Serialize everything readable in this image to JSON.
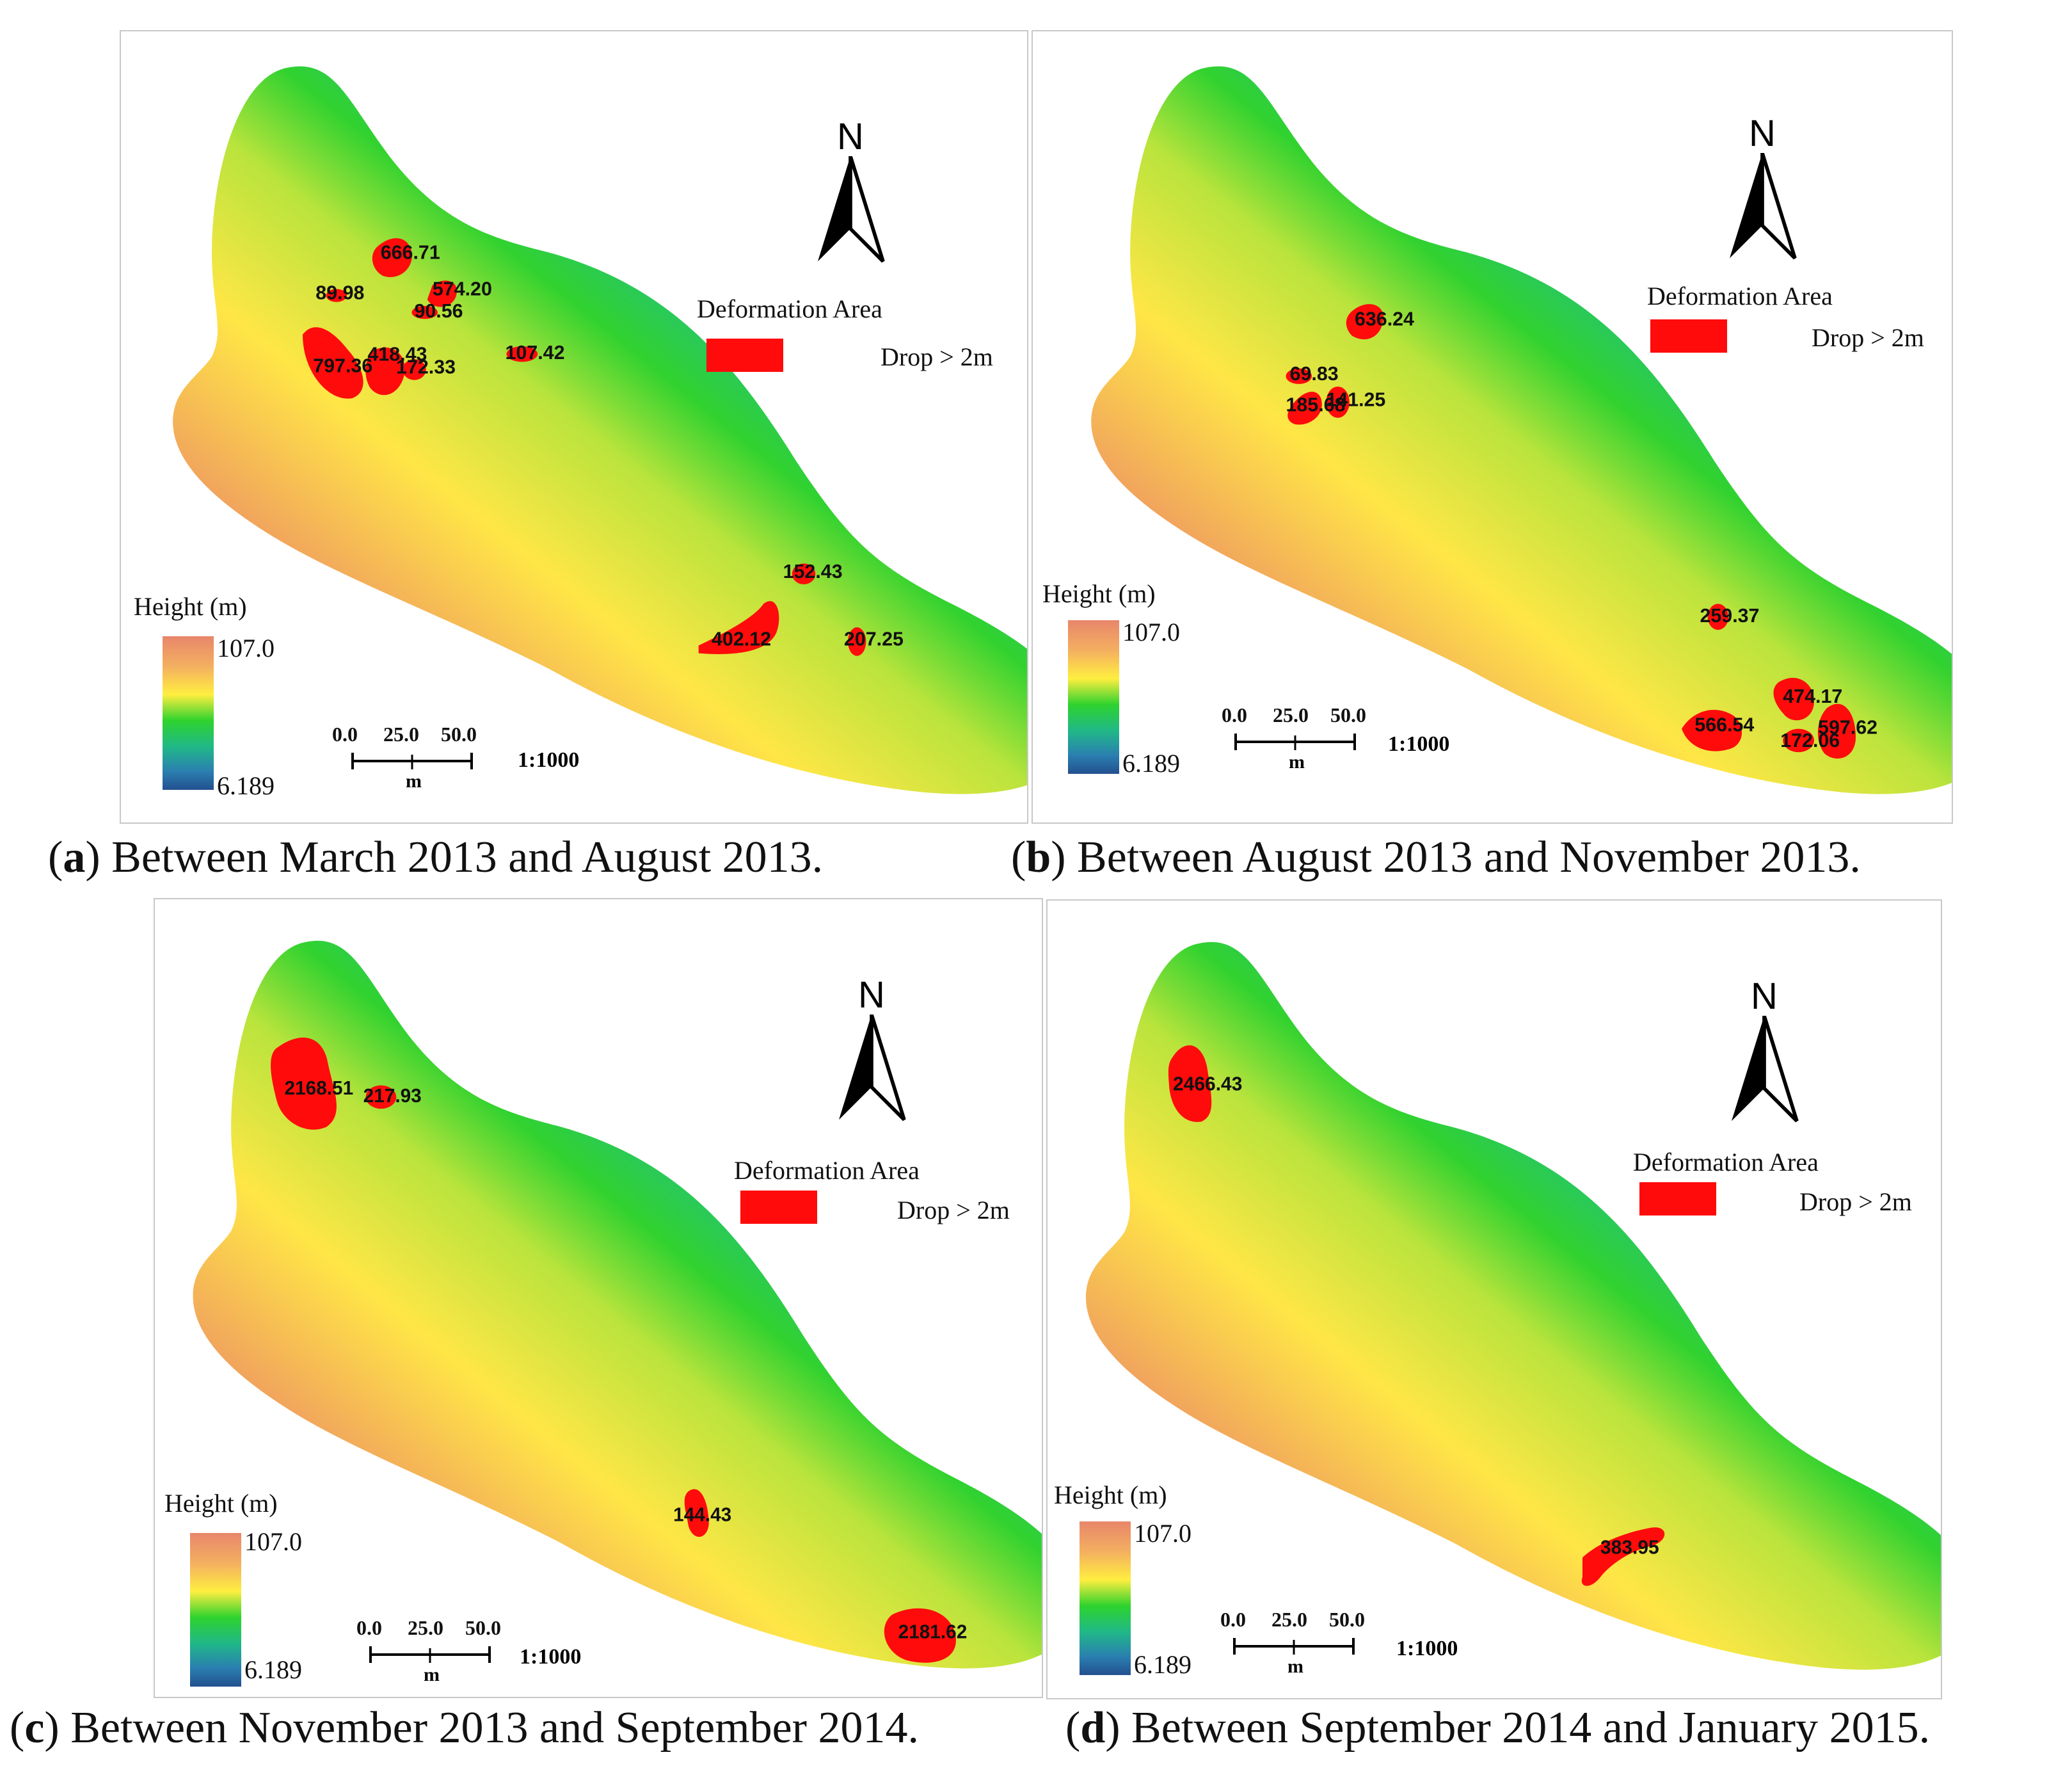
{
  "figure": {
    "panels": [
      {
        "caption": {
          "letter": "a",
          "text": ") Between March 2013 and August 2013."
        },
        "legend": {
          "title": "Height (m)",
          "max": "107.0",
          "min": "6.189"
        },
        "deformation": {
          "title": "Deformation Area",
          "desc": "Drop > 2m"
        },
        "scale": {
          "ticks": [
            "0.0",
            "25.0",
            "50.0"
          ],
          "unit": "m",
          "ratio": "1:1000"
        },
        "north": "N",
        "zones": [
          "666.71",
          "89.98",
          "574.20",
          "90.56",
          "797.36",
          "418.43",
          "172.33",
          "107.42",
          "152.43",
          "402.12",
          "207.25"
        ]
      },
      {
        "caption": {
          "letter": "b",
          "text": ") Between August 2013 and November 2013."
        },
        "legend": {
          "title": "Height (m)",
          "max": "107.0",
          "min": "6.189"
        },
        "deformation": {
          "title": "Deformation Area",
          "desc": "Drop > 2m"
        },
        "scale": {
          "ticks": [
            "0.0",
            "25.0",
            "50.0"
          ],
          "unit": "m",
          "ratio": "1:1000"
        },
        "north": "N",
        "zones": [
          "636.24",
          "69.83",
          "185.68",
          "141.25",
          "259.37",
          "566.54",
          "474.17",
          "172.06",
          "597.62"
        ]
      },
      {
        "caption": {
          "letter": "c",
          "text": ") Between November 2013 and September 2014."
        },
        "legend": {
          "title": "Height (m)",
          "max": "107.0",
          "min": "6.189"
        },
        "deformation": {
          "title": "Deformation Area",
          "desc": "Drop > 2m"
        },
        "scale": {
          "ticks": [
            "0.0",
            "25.0",
            "50.0"
          ],
          "unit": "m",
          "ratio": "1:1000"
        },
        "north": "N",
        "zones": [
          "2168.51",
          "217.93",
          "144.43",
          "2181.62"
        ]
      },
      {
        "caption": {
          "letter": "d",
          "text": ") Between September 2014 and January 2015."
        },
        "legend": {
          "title": "Height (m)",
          "max": "107.0",
          "min": "6.189"
        },
        "deformation": {
          "title": "Deformation Area",
          "desc": "Drop > 2m"
        },
        "scale": {
          "ticks": [
            "0.0",
            "25.0",
            "50.0"
          ],
          "unit": "m",
          "ratio": "1:1000"
        },
        "north": "N",
        "zones": [
          "2466.43",
          "383.95"
        ]
      }
    ],
    "colors": {
      "deformation": "#ff0b0b",
      "high": "#e8866b",
      "mid": "#2ed32e",
      "low": "#23508f"
    }
  }
}
